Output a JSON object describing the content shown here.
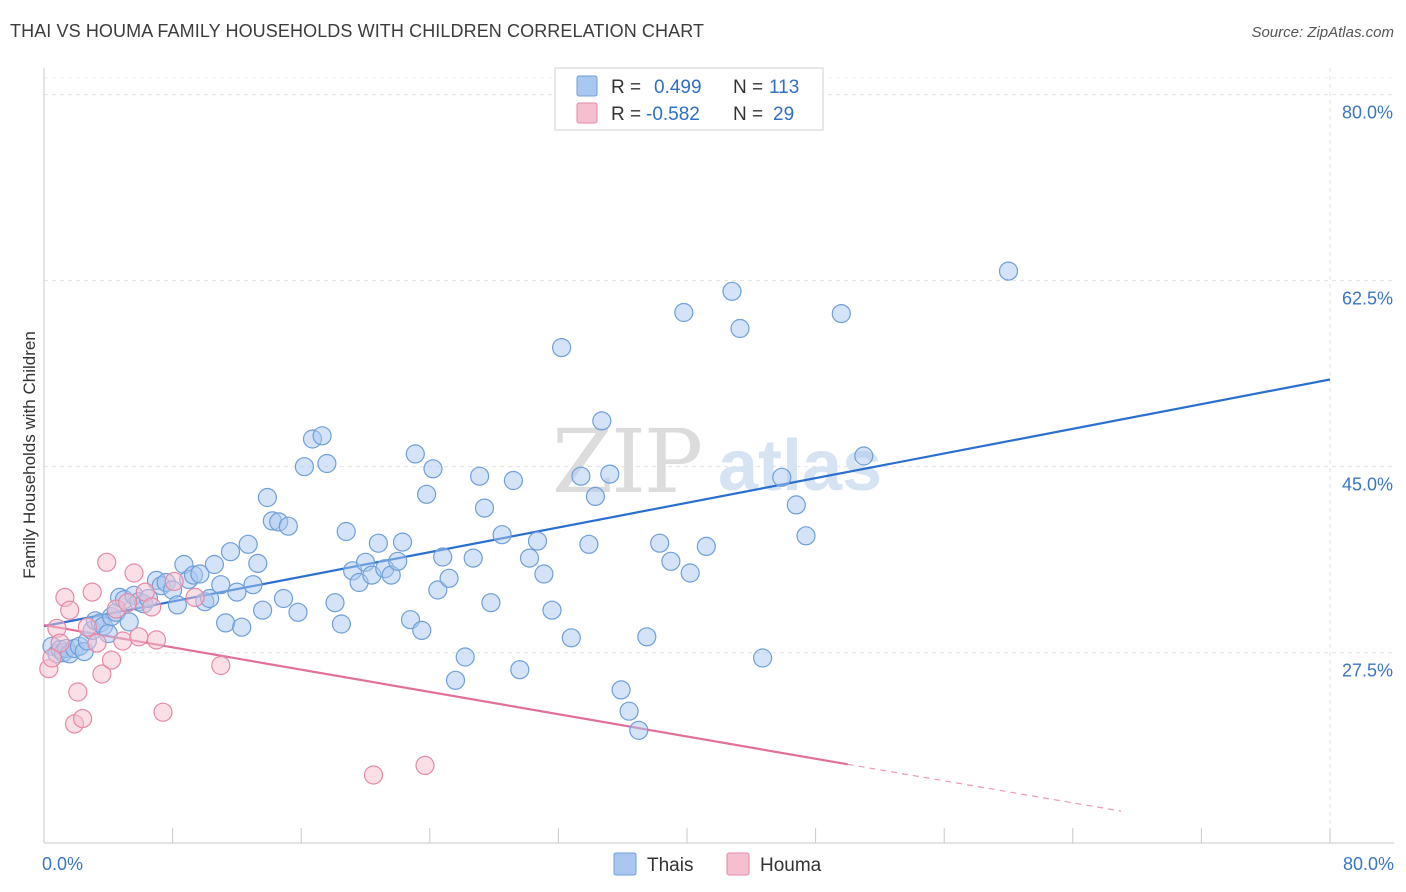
{
  "title": "THAI VS HOUMA FAMILY HOUSEHOLDS WITH CHILDREN CORRELATION CHART",
  "source": "Source: ZipAtlas.com",
  "watermark": {
    "part1": "ZIP",
    "part2": "atlas"
  },
  "legend": {
    "rows": [
      {
        "r_label": "R =",
        "r_value": "0.499",
        "n_label": "N =",
        "n_value": "113",
        "color": "#a9c7ef",
        "stroke": "#6f9fd8"
      },
      {
        "r_label": "R =",
        "r_value": "-0.582",
        "n_label": "N =",
        "n_value": "29",
        "color": "#f6bfd0",
        "stroke": "#e58aa6"
      }
    ]
  },
  "bottom_legend": [
    {
      "label": "Thais",
      "color": "#a9c7ef",
      "stroke": "#6f9fd8"
    },
    {
      "label": "Houma",
      "color": "#f6bfd0",
      "stroke": "#e58aa6"
    }
  ],
  "chart_data": {
    "type": "scatter",
    "title": "THAI VS HOUMA FAMILY HOUSEHOLDS WITH CHILDREN CORRELATION CHART",
    "xlabel": "",
    "ylabel": "Family Households with Children",
    "xlim": [
      0,
      80
    ],
    "ylim": [
      9.6,
      82.5
    ],
    "x_tick_labels": [
      {
        "value": 0,
        "label": "0.0%"
      },
      {
        "value": 80,
        "label": "80.0%"
      }
    ],
    "y_ticks": [
      {
        "value": 27.5,
        "label": "27.5%"
      },
      {
        "value": 45.0,
        "label": "45.0%"
      },
      {
        "value": 62.5,
        "label": "62.5%"
      },
      {
        "value": 80.0,
        "label": "80.0%"
      }
    ],
    "grid": true,
    "series": [
      {
        "name": "Thais",
        "color": "#a9c7ef",
        "stroke": "#6f9fd8",
        "line_color": "#2a6fd0",
        "trend": {
          "x0": 0,
          "y0": 30.0,
          "x1": 80,
          "y1": 53.2
        },
        "points": [
          [
            0.5,
            28.1
          ],
          [
            0.8,
            27.4
          ],
          [
            1.0,
            27.8
          ],
          [
            1.2,
            27.5
          ],
          [
            1.4,
            27.9
          ],
          [
            1.6,
            27.4
          ],
          [
            1.9,
            27.9
          ],
          [
            2.2,
            28.1
          ],
          [
            2.5,
            27.6
          ],
          [
            2.7,
            28.6
          ],
          [
            3.0,
            29.6
          ],
          [
            3.2,
            30.5
          ],
          [
            3.5,
            30.3
          ],
          [
            3.7,
            30.0
          ],
          [
            4.0,
            29.3
          ],
          [
            4.2,
            30.9
          ],
          [
            4.5,
            31.3
          ],
          [
            4.7,
            32.7
          ],
          [
            5.0,
            32.5
          ],
          [
            5.3,
            30.4
          ],
          [
            5.6,
            32.9
          ],
          [
            5.9,
            32.3
          ],
          [
            6.2,
            32.1
          ],
          [
            6.5,
            32.6
          ],
          [
            7.0,
            34.3
          ],
          [
            7.3,
            33.8
          ],
          [
            7.6,
            34.1
          ],
          [
            8.0,
            33.4
          ],
          [
            8.3,
            32.0
          ],
          [
            8.7,
            35.8
          ],
          [
            9.0,
            34.4
          ],
          [
            9.3,
            34.8
          ],
          [
            9.7,
            34.9
          ],
          [
            10.0,
            32.3
          ],
          [
            10.3,
            32.6
          ],
          [
            10.6,
            35.8
          ],
          [
            11.0,
            33.9
          ],
          [
            11.3,
            30.3
          ],
          [
            11.6,
            37.0
          ],
          [
            12.0,
            33.2
          ],
          [
            12.3,
            29.9
          ],
          [
            12.7,
            37.7
          ],
          [
            13.0,
            33.9
          ],
          [
            13.3,
            35.9
          ],
          [
            13.6,
            31.5
          ],
          [
            13.9,
            42.1
          ],
          [
            14.2,
            39.9
          ],
          [
            14.6,
            39.8
          ],
          [
            14.9,
            32.6
          ],
          [
            15.2,
            39.4
          ],
          [
            15.8,
            31.3
          ],
          [
            16.2,
            45.0
          ],
          [
            16.7,
            47.6
          ],
          [
            17.3,
            47.9
          ],
          [
            17.6,
            45.3
          ],
          [
            18.1,
            32.2
          ],
          [
            18.5,
            30.2
          ],
          [
            18.8,
            38.9
          ],
          [
            19.2,
            35.2
          ],
          [
            19.6,
            34.1
          ],
          [
            20.0,
            36.0
          ],
          [
            20.4,
            34.8
          ],
          [
            20.8,
            37.8
          ],
          [
            21.2,
            35.4
          ],
          [
            21.6,
            34.8
          ],
          [
            22.0,
            36.1
          ],
          [
            22.3,
            37.9
          ],
          [
            22.8,
            30.6
          ],
          [
            23.1,
            46.2
          ],
          [
            23.5,
            29.6
          ],
          [
            23.8,
            42.4
          ],
          [
            24.2,
            44.8
          ],
          [
            24.5,
            33.4
          ],
          [
            24.8,
            36.5
          ],
          [
            25.2,
            34.5
          ],
          [
            25.6,
            24.9
          ],
          [
            26.2,
            27.1
          ],
          [
            26.7,
            36.4
          ],
          [
            27.1,
            44.1
          ],
          [
            27.4,
            41.1
          ],
          [
            27.8,
            32.2
          ],
          [
            28.5,
            38.6
          ],
          [
            29.2,
            43.7
          ],
          [
            29.6,
            25.9
          ],
          [
            30.2,
            36.4
          ],
          [
            30.7,
            38.0
          ],
          [
            31.1,
            34.9
          ],
          [
            31.6,
            31.5
          ],
          [
            32.2,
            56.2
          ],
          [
            32.8,
            28.9
          ],
          [
            33.4,
            44.1
          ],
          [
            33.9,
            37.7
          ],
          [
            34.3,
            42.2
          ],
          [
            34.7,
            49.3
          ],
          [
            35.2,
            44.3
          ],
          [
            35.9,
            24.0
          ],
          [
            36.4,
            22.0
          ],
          [
            37.0,
            20.2
          ],
          [
            37.5,
            29.0
          ],
          [
            38.3,
            37.8
          ],
          [
            39.0,
            36.1
          ],
          [
            39.8,
            59.5
          ],
          [
            40.2,
            35.0
          ],
          [
            41.2,
            37.5
          ],
          [
            42.8,
            61.5
          ],
          [
            43.3,
            58.0
          ],
          [
            44.7,
            27.0
          ],
          [
            45.9,
            44.0
          ],
          [
            46.8,
            41.4
          ],
          [
            47.4,
            38.5
          ],
          [
            49.6,
            59.4
          ],
          [
            51.0,
            46.0
          ],
          [
            60.0,
            63.4
          ]
        ]
      },
      {
        "name": "Houma",
        "color": "#f6bfd0",
        "stroke": "#e58aa6",
        "line_color": "#e0709a",
        "trend": {
          "x0": 0,
          "y0": 30.1,
          "x1": 50,
          "y1": 17.0
        },
        "trend_dashed_to": {
          "x": 67,
          "y": 12.6
        },
        "points": [
          [
            0.3,
            26.0
          ],
          [
            0.5,
            27.0
          ],
          [
            0.8,
            29.8
          ],
          [
            1.0,
            28.4
          ],
          [
            1.3,
            32.7
          ],
          [
            1.6,
            31.5
          ],
          [
            1.9,
            20.8
          ],
          [
            2.1,
            23.8
          ],
          [
            2.4,
            21.3
          ],
          [
            2.7,
            29.9
          ],
          [
            3.0,
            33.2
          ],
          [
            3.3,
            28.4
          ],
          [
            3.6,
            25.5
          ],
          [
            3.9,
            36.0
          ],
          [
            4.2,
            26.8
          ],
          [
            4.5,
            31.6
          ],
          [
            4.9,
            28.6
          ],
          [
            5.2,
            32.2
          ],
          [
            5.6,
            35.0
          ],
          [
            5.9,
            29.0
          ],
          [
            6.3,
            33.2
          ],
          [
            6.7,
            31.8
          ],
          [
            7.0,
            28.7
          ],
          [
            7.4,
            21.9
          ],
          [
            8.1,
            34.2
          ],
          [
            9.4,
            32.7
          ],
          [
            11.0,
            26.3
          ],
          [
            20.5,
            16.0
          ],
          [
            23.7,
            16.9
          ]
        ]
      }
    ]
  }
}
